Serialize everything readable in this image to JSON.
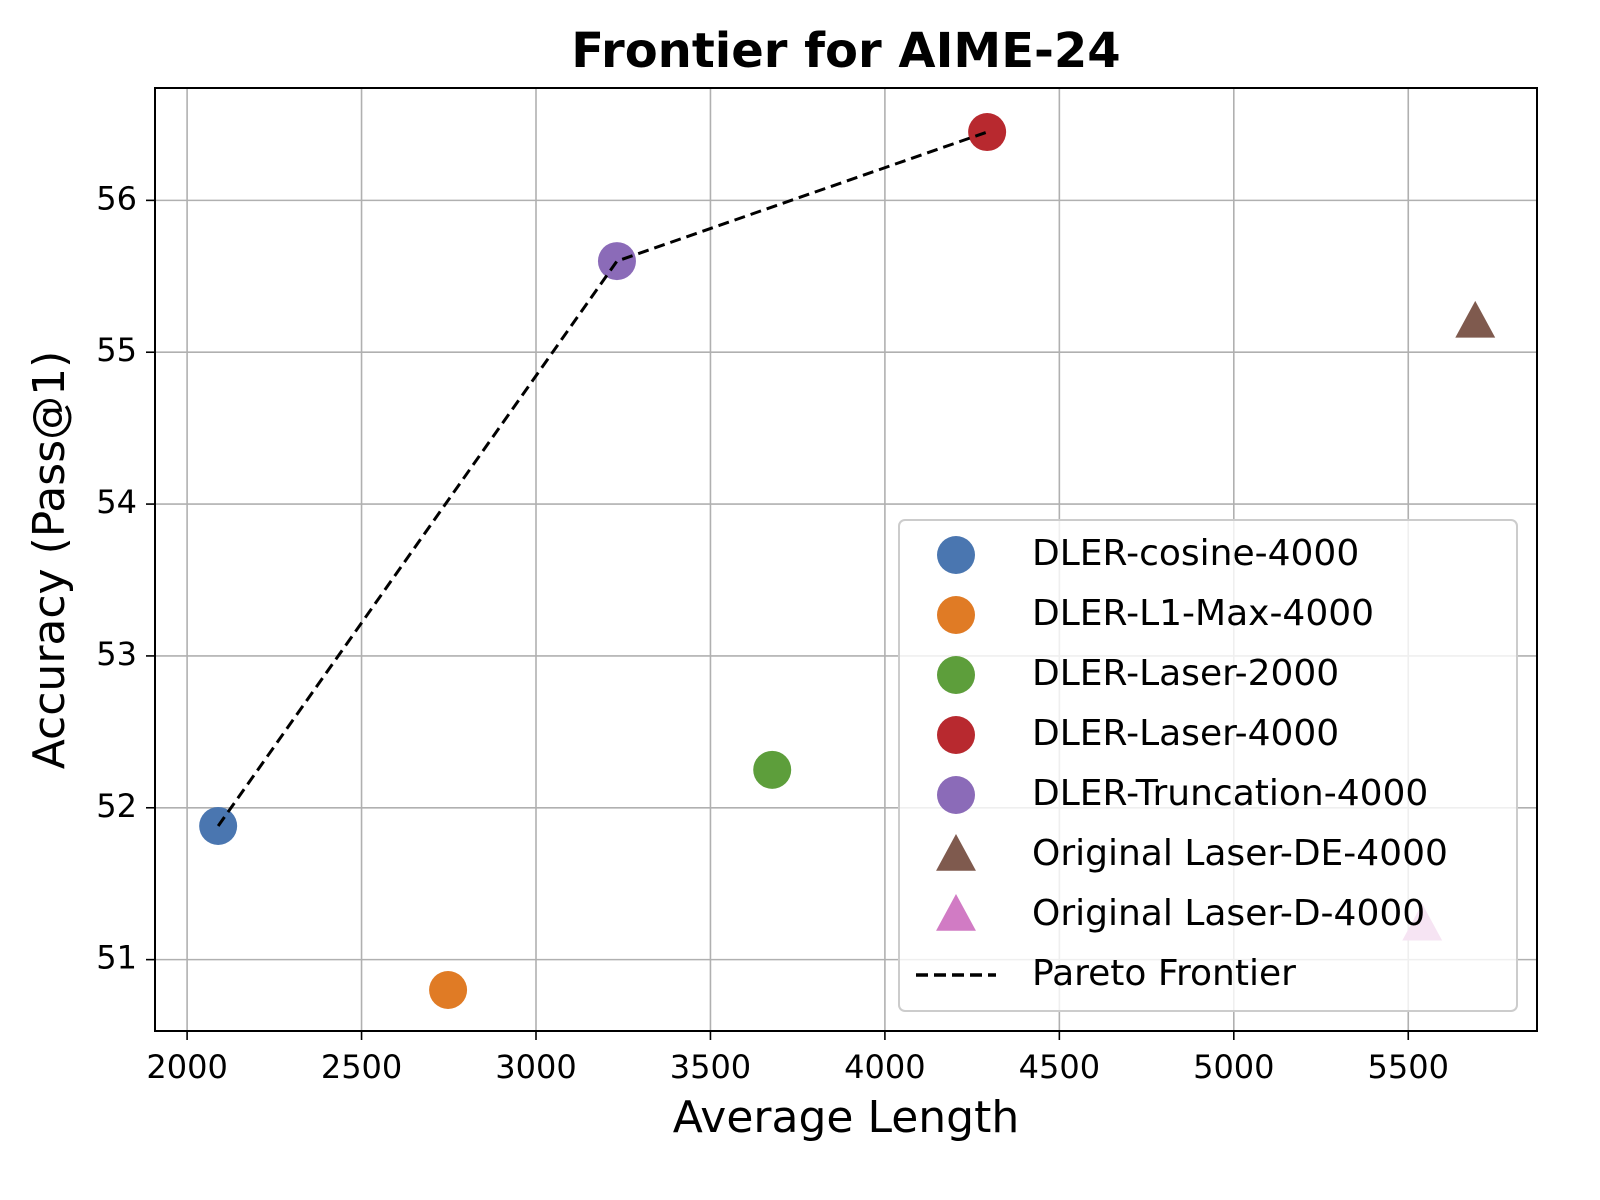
{
  "chart_data": {
    "type": "scatter",
    "title": "Frontier for AIME-24",
    "x_label": "Average Length",
    "y_label": "Accuracy (Pass@1)",
    "xlim": [
      1908,
      5869
    ],
    "ylim": [
      50.53,
      56.74
    ],
    "xticks": [
      2000,
      2500,
      3000,
      3500,
      4000,
      4500,
      5000,
      5500
    ],
    "yticks": [
      51,
      52,
      53,
      54,
      55,
      56
    ],
    "grid": true,
    "legend": "lower right",
    "series": [
      {
        "name": "DLER-cosine-4000",
        "color": "#4a76b0",
        "marker": "circle",
        "x": [
          2089
        ],
        "values": [
          51.88
        ]
      },
      {
        "name": "DLER-L1-Max-4000",
        "color": "#e07b25",
        "marker": "circle",
        "x": [
          2748
        ],
        "values": [
          50.8
        ]
      },
      {
        "name": "DLER-Laser-2000",
        "color": "#5d9e3b",
        "marker": "circle",
        "x": [
          3677
        ],
        "values": [
          52.25
        ]
      },
      {
        "name": "DLER-Laser-4000",
        "color": "#b8292f",
        "marker": "circle",
        "x": [
          4293
        ],
        "values": [
          56.45
        ]
      },
      {
        "name": "DLER-Truncation-4000",
        "color": "#8b6bb8",
        "marker": "circle",
        "x": [
          3232
        ],
        "values": [
          55.6
        ]
      },
      {
        "name": "Original Laser-DE-4000",
        "color": "#7f5a4e",
        "marker": "triangle",
        "x": [
          5692
        ],
        "values": [
          55.2
        ]
      },
      {
        "name": "Original Laser-D-4000",
        "color": "#d17bc4",
        "marker": "triangle",
        "x": [
          5540
        ],
        "values": [
          51.23
        ]
      },
      {
        "name": "Pareto Frontier",
        "color": "#000000",
        "marker": "dashed-line",
        "x": [
          2089,
          3232,
          4293
        ],
        "values": [
          51.88,
          55.6,
          56.45
        ]
      }
    ]
  }
}
